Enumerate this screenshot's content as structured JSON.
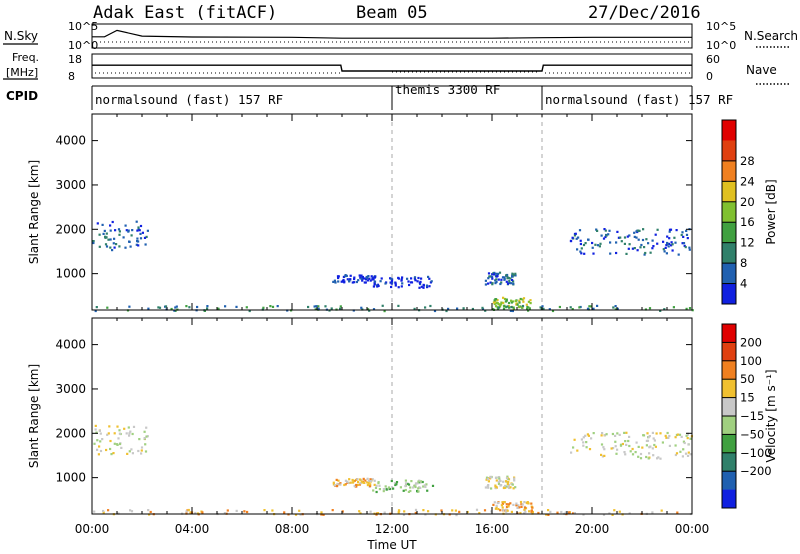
{
  "header": {
    "station": "Adak East (fitACF)",
    "beam": "Beam 05",
    "date": "27/Dec/2016"
  },
  "colors": {
    "power_scale": [
      "#1020e0",
      "#2060b0",
      "#30806a",
      "#40a040",
      "#80c030",
      "#e0c020",
      "#f08020",
      "#e04010",
      "#e00000"
    ],
    "velocity_scale": [
      "#1020e0",
      "#2060b0",
      "#30806a",
      "#40a040",
      "#a0d080",
      "#c8c8c8",
      "#f0c030",
      "#f08020",
      "#e04010",
      "#e00000"
    ],
    "dashed_line": "#aaaaaa"
  },
  "chart_data": [
    {
      "type": "line",
      "panel": "noise",
      "left_labels": [
        "N.Sky"
      ],
      "right_labels": [
        "N.Search"
      ],
      "y_ticks_left": [
        "10^5",
        "10^0"
      ],
      "y_ticks_right": [
        "10^5",
        "10^0"
      ],
      "series": [
        {
          "name": "N.Sky",
          "x": [
            0,
            0.5,
            1.0,
            2.0,
            4,
            8,
            10,
            12,
            16,
            18,
            20,
            24
          ],
          "y": [
            200,
            200,
            8000,
            300,
            180,
            150,
            90,
            90,
            90,
            120,
            150,
            150
          ]
        }
      ]
    },
    {
      "type": "line",
      "panel": "frequency",
      "left_labels": [
        "Freq.",
        "[MHz]"
      ],
      "right_labels": [
        "Nave"
      ],
      "y_ticks_left": [
        "18",
        "8"
      ],
      "y_ticks_right": [
        "60",
        "0"
      ],
      "series": [
        {
          "name": "Freq.",
          "x": [
            0,
            9.95,
            10.0,
            18.0,
            18.05,
            24
          ],
          "y": [
            13.4,
            13.4,
            10.5,
            10.5,
            13.4,
            13.4
          ]
        }
      ]
    },
    {
      "type": "table",
      "panel": "cpid",
      "left_labels": [
        "CPID"
      ],
      "segments": [
        {
          "label": "normalsound (fast) 157 RF",
          "start": 0,
          "end": 12
        },
        {
          "label": "themis 3300 RF",
          "start": 12,
          "end": 18
        },
        {
          "label": "normalsound (fast) 157 RF",
          "start": 18,
          "end": 24
        }
      ]
    },
    {
      "type": "heatmap",
      "panel": "power",
      "ylabel": "Slant Range [km]",
      "xlabel": "Time UT",
      "xlim": [
        0,
        24
      ],
      "ylim": [
        180,
        4600
      ],
      "y_ticks": [
        1000,
        2000,
        3000,
        4000
      ],
      "x_ticks": [
        "00:00",
        "04:00",
        "08:00",
        "12:00",
        "16:00",
        "20:00",
        "00:00"
      ],
      "colorbar": {
        "label": "Power [dB]",
        "ticks": [
          "4",
          "8",
          "12",
          "16",
          "20",
          "24",
          "28"
        ]
      },
      "clusters": [
        {
          "t": [
            0.0,
            2.2
          ],
          "r": [
            1550,
            2200
          ],
          "level": 1
        },
        {
          "t": [
            9.6,
            11.3
          ],
          "r": [
            820,
            1000
          ],
          "level": 0
        },
        {
          "t": [
            11.2,
            13.6
          ],
          "r": [
            700,
            960
          ],
          "level": 0
        },
        {
          "t": [
            15.7,
            16.9
          ],
          "r": [
            780,
            1050
          ],
          "level": 1
        },
        {
          "t": [
            16.0,
            17.6
          ],
          "r": [
            220,
            480
          ],
          "level": 4
        },
        {
          "t": [
            19.1,
            24.0
          ],
          "r": [
            1450,
            2050
          ],
          "level": 1
        },
        {
          "t": [
            0.0,
            24.0
          ],
          "r": [
            180,
            300
          ],
          "level": 2
        }
      ]
    },
    {
      "type": "heatmap",
      "panel": "velocity",
      "ylabel": "Slant Range [km]",
      "xlabel": "Time UT",
      "xlim": [
        0,
        24
      ],
      "ylim": [
        180,
        4600
      ],
      "y_ticks": [
        1000,
        2000,
        3000,
        4000
      ],
      "x_ticks": [
        "00:00",
        "04:00",
        "08:00",
        "12:00",
        "16:00",
        "20:00",
        "00:00"
      ],
      "colorbar": {
        "label": "Velocity [m s⁻¹]",
        "ticks": [
          "200",
          "100",
          "50",
          "15",
          "−15",
          "−50",
          "−100",
          "−200"
        ]
      },
      "clusters": [
        {
          "t": [
            0.0,
            2.2
          ],
          "r": [
            1550,
            2200
          ],
          "level": 5
        },
        {
          "t": [
            9.6,
            11.3
          ],
          "r": [
            820,
            1000
          ],
          "level": 6
        },
        {
          "t": [
            11.2,
            13.6
          ],
          "r": [
            700,
            960
          ],
          "level": 4
        },
        {
          "t": [
            15.7,
            16.9
          ],
          "r": [
            780,
            1050
          ],
          "level": 5
        },
        {
          "t": [
            16.0,
            17.6
          ],
          "r": [
            220,
            480
          ],
          "level": 6
        },
        {
          "t": [
            19.1,
            24.0
          ],
          "r": [
            1450,
            2050
          ],
          "level": 5
        },
        {
          "t": [
            0.0,
            24.0
          ],
          "r": [
            180,
            300
          ],
          "level": 6
        }
      ],
      "xlabel_shown": "Time UT"
    }
  ]
}
